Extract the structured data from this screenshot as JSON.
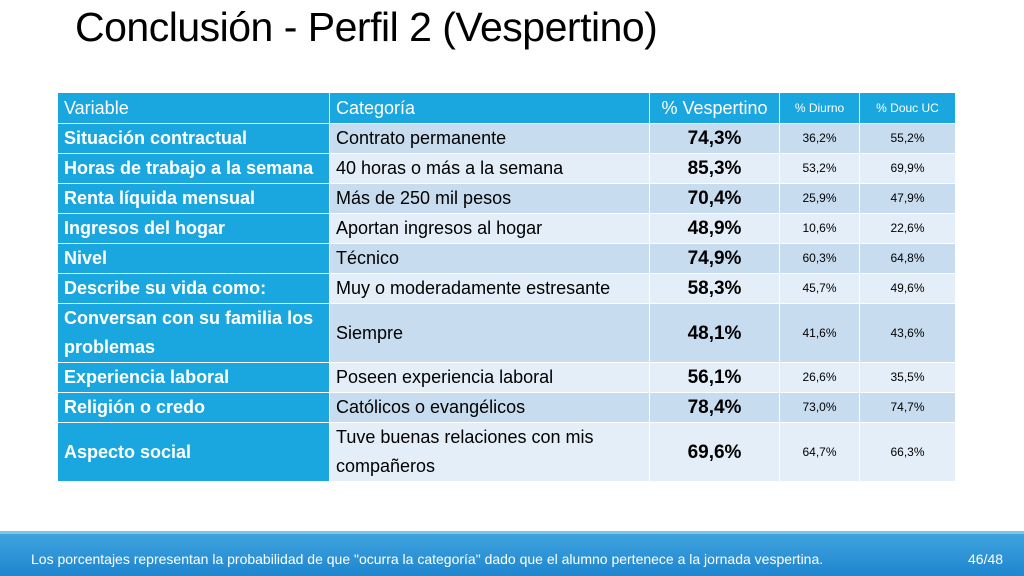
{
  "title": "Conclusión - Perfil 2 (Vespertino)",
  "table": {
    "headers": [
      "Variable",
      "Categoría",
      "% Vespertino",
      "% Diurno",
      "% Douc UC"
    ],
    "rows": [
      {
        "variable": "Situación contractual",
        "categoria": "Contrato permanente",
        "vespertino": "74,3%",
        "diurno": "36,2%",
        "douc": "55,2%"
      },
      {
        "variable": "Horas de trabajo a la semana",
        "categoria": "40 horas o más a la semana",
        "vespertino": "85,3%",
        "diurno": "53,2%",
        "douc": "69,9%"
      },
      {
        "variable": "Renta líquida mensual",
        "categoria": "Más de 250 mil pesos",
        "vespertino": "70,4%",
        "diurno": "25,9%",
        "douc": "47,9%"
      },
      {
        "variable": "Ingresos del hogar",
        "categoria": "Aportan ingresos al hogar",
        "vespertino": "48,9%",
        "diurno": "10,6%",
        "douc": "22,6%"
      },
      {
        "variable": "Nivel",
        "categoria": "Técnico",
        "vespertino": "74,9%",
        "diurno": "60,3%",
        "douc": "64,8%"
      },
      {
        "variable": "Describe su vida como:",
        "categoria": "Muy o moderadamente estresante",
        "vespertino": "58,3%",
        "diurno": "45,7%",
        "douc": "49,6%"
      },
      {
        "variable": "Conversan con su familia los problemas",
        "categoria": "Siempre",
        "vespertino": "48,1%",
        "diurno": "41,6%",
        "douc": "43,6%"
      },
      {
        "variable": "Experiencia laboral",
        "categoria": "Poseen experiencia laboral",
        "vespertino": "56,1%",
        "diurno": "26,6%",
        "douc": "35,5%"
      },
      {
        "variable": "Religión o credo",
        "categoria": "Católicos o evangélicos",
        "vespertino": "78,4%",
        "diurno": "73,0%",
        "douc": "74,7%"
      },
      {
        "variable": "Aspecto social",
        "categoria": "Tuve buenas relaciones con mis compañeros",
        "vespertino": "69,6%",
        "diurno": "64,7%",
        "douc": "66,3%"
      }
    ]
  },
  "footer": {
    "note": "Los porcentajes representan la probabilidad de que \"ocurra la categoría\" dado que el alumno pertenece a la jornada vespertina.",
    "page": "46/48"
  },
  "colors": {
    "header_blue": "#1aa6df",
    "row_dark": "#c7dcef",
    "row_light": "#e4eef8",
    "footer_blue": "#1f86cf"
  }
}
